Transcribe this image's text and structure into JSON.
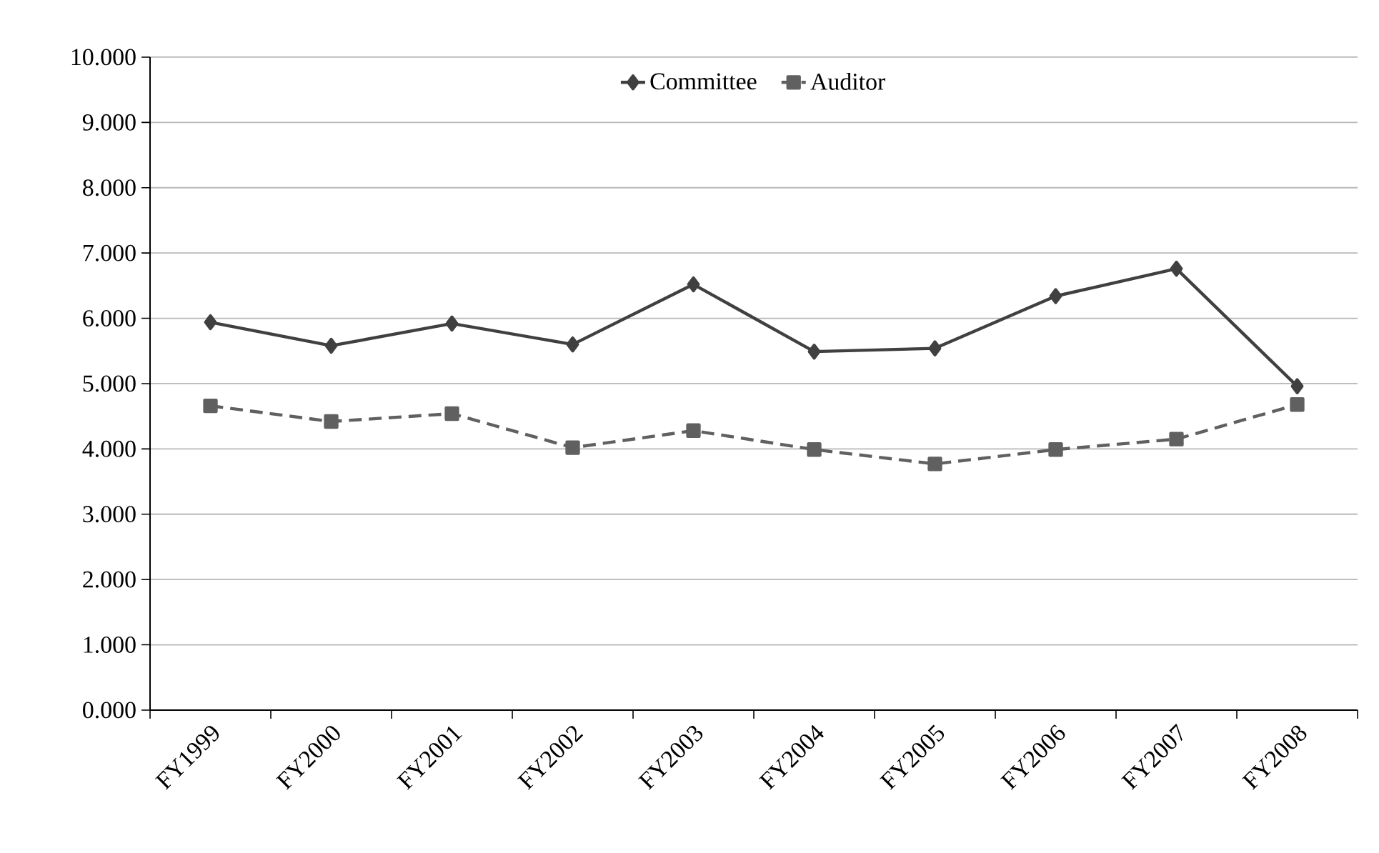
{
  "chart_data": {
    "type": "line",
    "categories": [
      "FY1999",
      "FY2000",
      "FY2001",
      "FY2002",
      "FY2003",
      "FY2004",
      "FY2005",
      "FY2006",
      "FY2007",
      "FY2008"
    ],
    "series": [
      {
        "name": "Committee",
        "color": "#404040",
        "marker": "diamond",
        "line_style": "solid",
        "values": [
          5.94,
          5.58,
          5.92,
          5.6,
          6.52,
          5.49,
          5.54,
          6.34,
          6.76,
          4.96
        ]
      },
      {
        "name": "Auditor",
        "color": "#606060",
        "marker": "square",
        "line_style": "dashed",
        "values": [
          4.66,
          4.42,
          4.54,
          4.02,
          4.28,
          3.99,
          3.77,
          3.99,
          4.15,
          4.68
        ]
      }
    ],
    "ylim": [
      0,
      10
    ],
    "yticks": [
      {
        "value": 0,
        "label": "0.000"
      },
      {
        "value": 1,
        "label": "1.000"
      },
      {
        "value": 2,
        "label": "2.000"
      },
      {
        "value": 3,
        "label": "3.000"
      },
      {
        "value": 4,
        "label": "4.000"
      },
      {
        "value": 5,
        "label": "5.000"
      },
      {
        "value": 6,
        "label": "6.000"
      },
      {
        "value": 7,
        "label": "7.000"
      },
      {
        "value": 8,
        "label": "8.000"
      },
      {
        "value": 9,
        "label": "9.000"
      },
      {
        "value": 10,
        "label": "10.000"
      }
    ],
    "grid": "y",
    "legend": "top"
  }
}
